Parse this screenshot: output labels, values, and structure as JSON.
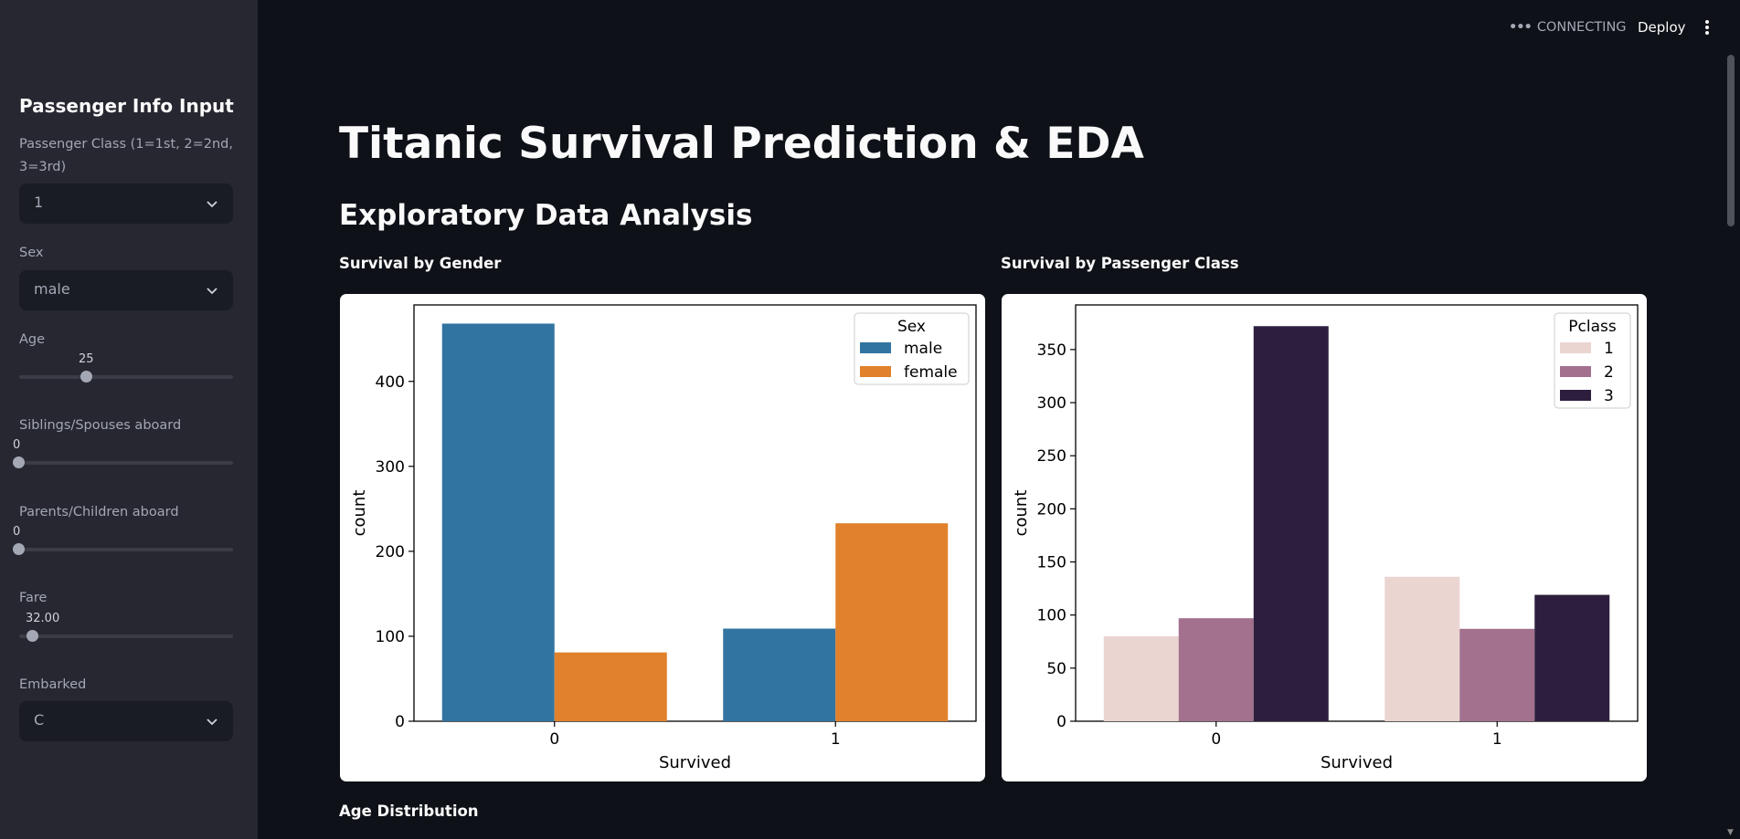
{
  "header": {
    "status": "CONNECTING",
    "deploy_label": "Deploy"
  },
  "sidebar": {
    "title": "Passenger Info Input",
    "pclass": {
      "label": "Passenger Class (1=1st, 2=2nd, 3=3rd)",
      "value": "1"
    },
    "sex": {
      "label": "Sex",
      "value": "male"
    },
    "age": {
      "label": "Age",
      "value": "25",
      "fraction": 0.3125
    },
    "sibsp": {
      "label": "Siblings/Spouses aboard",
      "value": "0",
      "fraction": 0
    },
    "parch": {
      "label": "Parents/Children aboard",
      "value": "0",
      "fraction": 0
    },
    "fare": {
      "label": "Fare",
      "value": "32.00",
      "fraction": 0.0625
    },
    "embarked": {
      "label": "Embarked",
      "value": "C"
    }
  },
  "main": {
    "title": "Titanic Survival Prediction & EDA",
    "subtitle": "Exploratory Data Analysis",
    "gender_label": "Survival by Gender",
    "class_label": "Survival by Passenger Class",
    "age_label": "Age Distribution"
  },
  "chart_data": [
    {
      "type": "bar",
      "title": "",
      "xlabel": "Survived",
      "ylabel": "count",
      "categories": [
        "0",
        "1"
      ],
      "ylim": [
        0,
        490
      ],
      "yticks": [
        0,
        100,
        200,
        300,
        400
      ],
      "legend_title": "Sex",
      "legend_position": "top-right",
      "series": [
        {
          "name": "male",
          "values": [
            468,
            109
          ],
          "color": "#3274a1"
        },
        {
          "name": "female",
          "values": [
            81,
            233
          ],
          "color": "#e1812c"
        }
      ]
    },
    {
      "type": "bar",
      "title": "",
      "xlabel": "Survived",
      "ylabel": "count",
      "categories": [
        "0",
        "1"
      ],
      "ylim": [
        0,
        392
      ],
      "yticks": [
        0,
        50,
        100,
        150,
        200,
        250,
        300,
        350
      ],
      "legend_title": "Pclass",
      "legend_position": "top-right",
      "series": [
        {
          "name": "1",
          "values": [
            80,
            136
          ],
          "color": "#ebd5d0"
        },
        {
          "name": "2",
          "values": [
            97,
            87
          ],
          "color": "#a3708e"
        },
        {
          "name": "3",
          "values": [
            372,
            119
          ],
          "color": "#2d1e3e"
        }
      ]
    }
  ]
}
